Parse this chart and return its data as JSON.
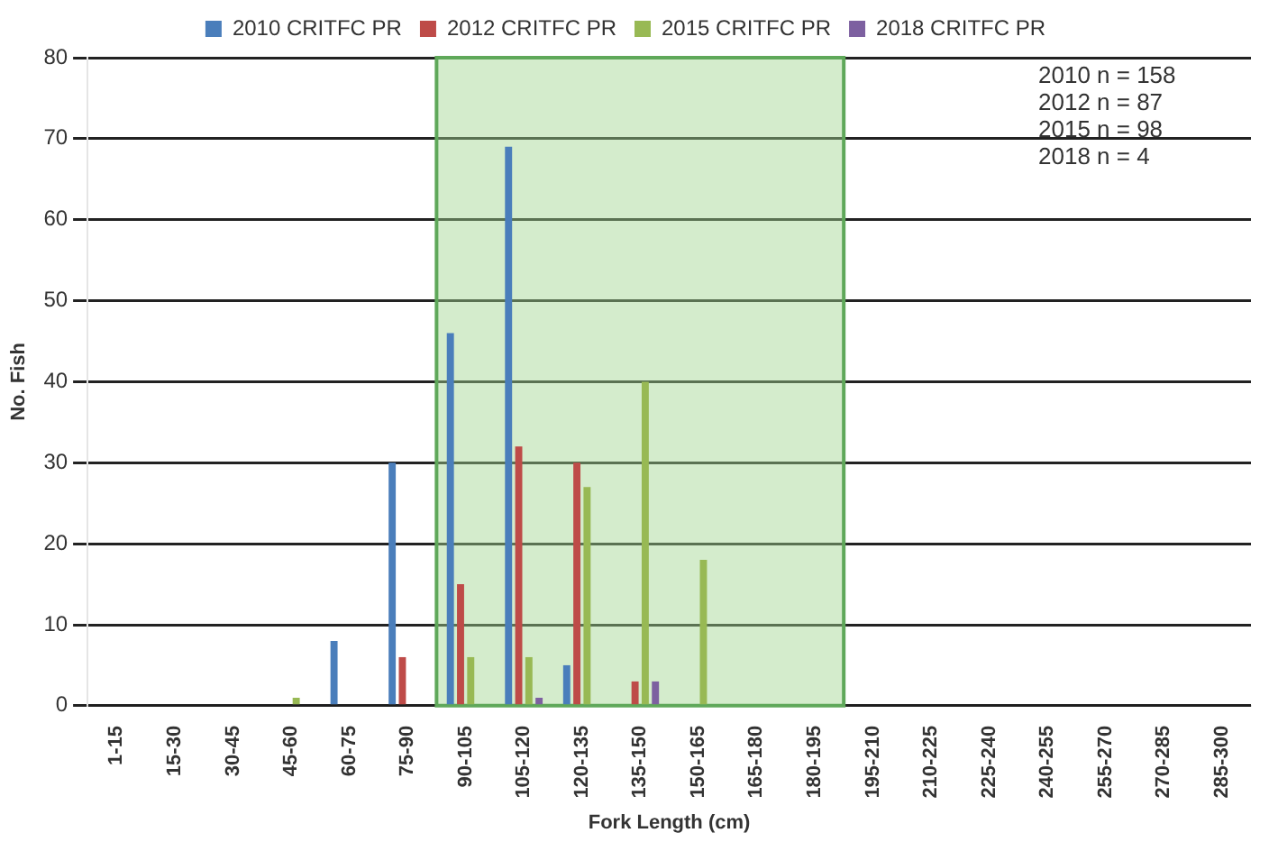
{
  "chart_data": {
    "type": "bar",
    "xlabel": "Fork Length (cm)",
    "ylabel": "No. Fish",
    "categories": [
      "1-15",
      "15-30",
      "30-45",
      "45-60",
      "60-75",
      "75-90",
      "90-105",
      "105-120",
      "120-135",
      "135-150",
      "150-165",
      "165-180",
      "180-195",
      "195-210",
      "210-225",
      "225-240",
      "240-255",
      "255-270",
      "270-285",
      "285-300"
    ],
    "series": [
      {
        "name": "2010 CRITFC PR",
        "color": "#4a7ebb",
        "values": [
          0,
          0,
          0,
          0,
          8,
          30,
          46,
          69,
          5,
          0,
          0,
          0,
          0,
          0,
          0,
          0,
          0,
          0,
          0,
          0
        ]
      },
      {
        "name": "2012 CRITFC PR",
        "color": "#be4b48",
        "values": [
          0,
          0,
          0,
          0,
          0,
          6,
          15,
          32,
          30,
          3,
          0,
          0,
          0,
          0,
          0,
          0,
          0,
          0,
          0,
          0
        ]
      },
      {
        "name": "2015 CRITFC PR",
        "color": "#98b954",
        "values": [
          0,
          0,
          0,
          1,
          0,
          0,
          6,
          6,
          27,
          40,
          18,
          0,
          0,
          0,
          0,
          0,
          0,
          0,
          0,
          0
        ]
      },
      {
        "name": "2018 CRITFC PR",
        "color": "#7d60a0",
        "values": [
          0,
          0,
          0,
          0,
          0,
          0,
          0,
          1,
          0,
          3,
          0,
          0,
          0,
          0,
          0,
          0,
          0,
          0,
          0,
          0
        ]
      }
    ],
    "ylim": [
      0,
      80
    ],
    "yticks": [
      0,
      10,
      20,
      30,
      40,
      50,
      60,
      70,
      80
    ],
    "grid": "y",
    "legend": "top",
    "bands": [
      {
        "axis": "x",
        "from": "90-105",
        "to": "180-195",
        "color": "#9fd58f"
      }
    ],
    "annotations": [
      "2010 n = 158",
      "2012 n = 87",
      "2015 n = 98",
      "2018 n = 4"
    ]
  }
}
